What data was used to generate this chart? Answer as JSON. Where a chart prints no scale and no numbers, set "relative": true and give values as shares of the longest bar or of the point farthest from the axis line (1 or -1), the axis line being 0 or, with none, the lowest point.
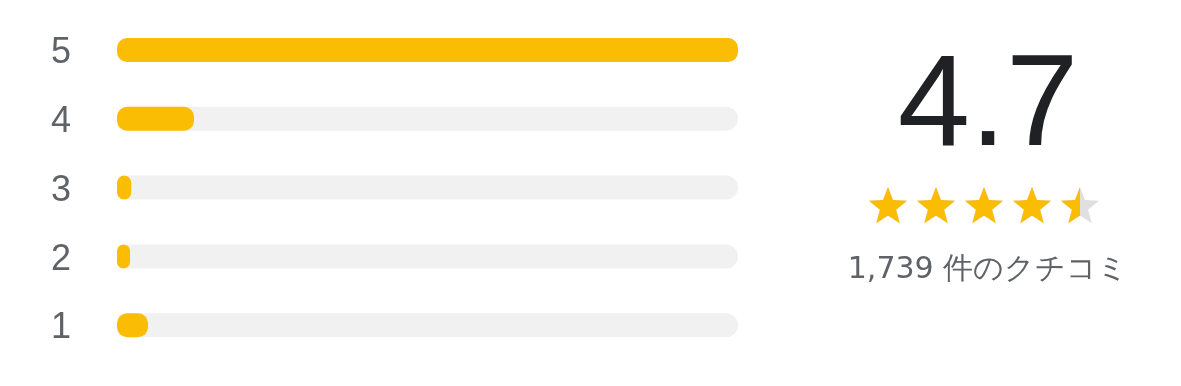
{
  "chart_data": {
    "type": "bar",
    "orientation": "horizontal",
    "relative": true,
    "categories": [
      "5",
      "4",
      "3",
      "2",
      "1"
    ],
    "values": [
      1,
      0.124,
      0.023,
      0.021,
      0.05
    ],
    "color": "#fbbc04",
    "grid": false,
    "legend": false,
    "annotations": [
      "4.7",
      "1,739 件のクチコミ"
    ]
  }
}
